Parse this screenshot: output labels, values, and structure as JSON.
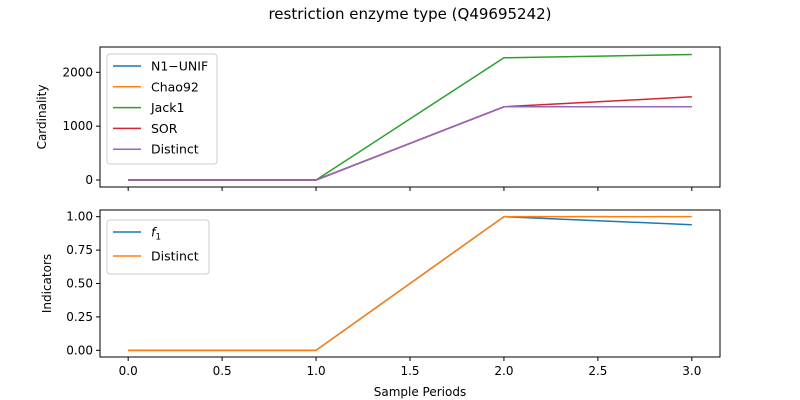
{
  "figure": {
    "title": "restriction enzyme type (Q49695242)"
  },
  "chart_data": [
    {
      "type": "line",
      "ylabel": "Cardinality",
      "xlabel": "",
      "x": [
        0,
        1,
        2,
        3
      ],
      "xlim": [
        -0.15,
        3.15
      ],
      "ylim": [
        -130,
        2470
      ],
      "xticks": [
        0.0,
        0.5,
        1.0,
        1.5,
        2.0,
        2.5,
        3.0
      ],
      "xtick_labels_visible": false,
      "yticks": [
        0,
        1000,
        2000
      ],
      "ytick_labels": [
        "0",
        "1000",
        "2000"
      ],
      "legend": "upper left",
      "series": [
        {
          "name": "N1−UNIF",
          "color": "#1f77b4",
          "values": [
            0,
            0,
            1360,
            1360
          ]
        },
        {
          "name": "Chao92",
          "color": "#ff7f0e",
          "values": [
            0,
            0,
            1360,
            1360
          ]
        },
        {
          "name": "Jack1",
          "color": "#2ca02c",
          "values": [
            0,
            0,
            2270,
            2330
          ]
        },
        {
          "name": "SOR",
          "color": "#d62728",
          "values": [
            0,
            0,
            1360,
            1545
          ]
        },
        {
          "name": "Distinct",
          "color": "#9467bd",
          "values": [
            0,
            0,
            1360,
            1360
          ]
        }
      ]
    },
    {
      "type": "line",
      "ylabel": "Indicators",
      "xlabel": "Sample Periods",
      "x": [
        0,
        1,
        2,
        3
      ],
      "xlim": [
        -0.15,
        3.15
      ],
      "ylim": [
        -0.05,
        1.05
      ],
      "xticks": [
        0.0,
        0.5,
        1.0,
        1.5,
        2.0,
        2.5,
        3.0
      ],
      "xtick_labels": [
        "0.0",
        "0.5",
        "1.0",
        "1.5",
        "2.0",
        "2.5",
        "3.0"
      ],
      "xtick_labels_visible": true,
      "yticks": [
        0.0,
        0.25,
        0.5,
        0.75,
        1.0
      ],
      "ytick_labels": [
        "0.00",
        "0.25",
        "0.50",
        "0.75",
        "1.00"
      ],
      "legend": "upper left",
      "series": [
        {
          "name": "f1",
          "legend_main": "f",
          "legend_sub": "1",
          "color": "#1f77b4",
          "values": [
            0,
            0,
            1.0,
            0.94
          ]
        },
        {
          "name": "Distinct",
          "color": "#ff7f0e",
          "values": [
            0,
            0,
            1.0,
            1.0
          ]
        }
      ]
    }
  ]
}
